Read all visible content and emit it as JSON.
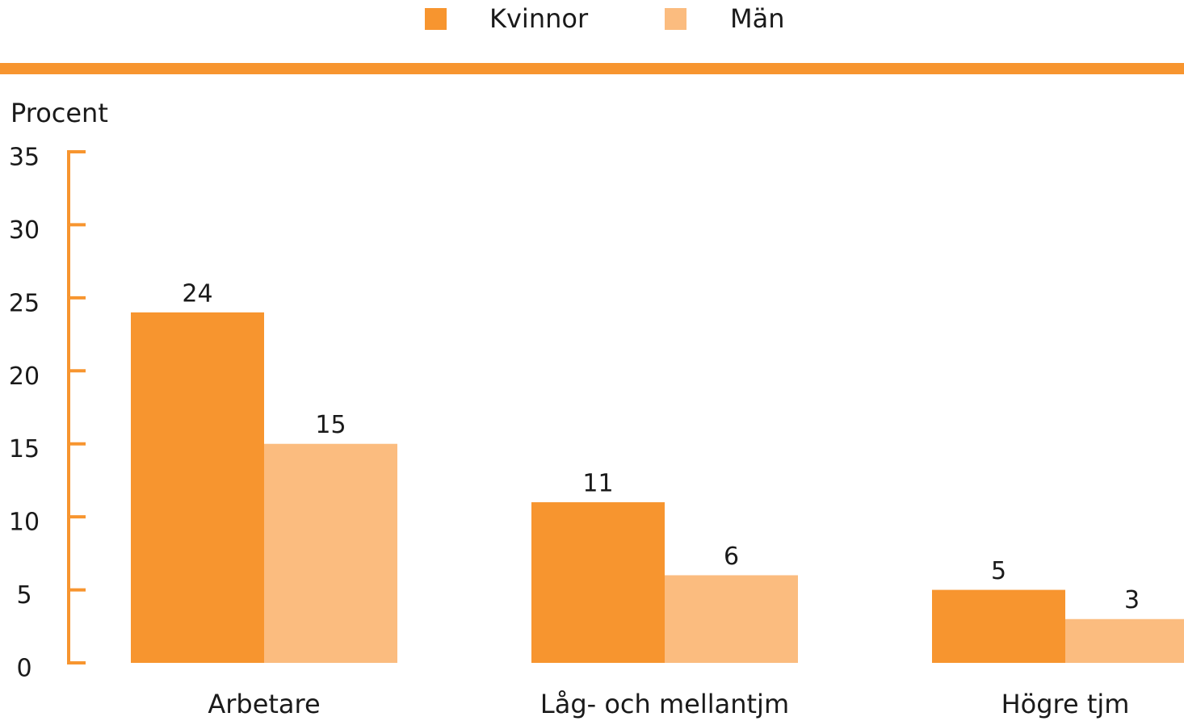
{
  "chart_data": {
    "type": "bar",
    "y_label": "Procent",
    "categories": [
      "Arbetare",
      "Låg- och mellantjm",
      "Högre tjm"
    ],
    "series": [
      {
        "name": "Kvinnor",
        "color": "#f7952f",
        "values": [
          24,
          11,
          5
        ]
      },
      {
        "name": "Män",
        "color": "#fbbc7f",
        "values": [
          15,
          6,
          3
        ]
      }
    ],
    "ylim": [
      0,
      35
    ],
    "yticks": [
      0,
      5,
      10,
      15,
      20,
      25,
      30,
      35
    ],
    "axis_color": "#f7952f",
    "grid": false
  }
}
